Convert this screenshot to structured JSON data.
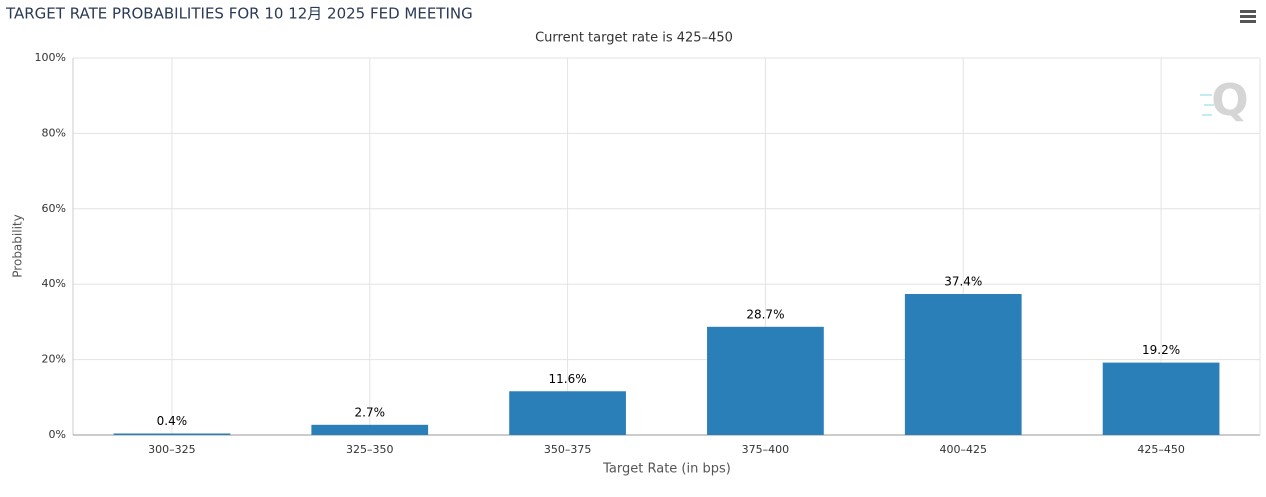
{
  "chart_data": {
    "type": "bar",
    "title": "TARGET RATE PROBABILITIES FOR 10 12月 2025 FED MEETING",
    "subtitle": "Current target rate is 425–450",
    "y_label": "Probability",
    "x_label": "Target Rate (in bps)",
    "categories": [
      "300–325",
      "325–350",
      "350–375",
      "375–400",
      "400–425",
      "425–450"
    ],
    "values": [
      0.4,
      2.7,
      11.6,
      28.7,
      37.4,
      19.2
    ],
    "value_labels": [
      "0.4%",
      "2.7%",
      "11.6%",
      "28.7%",
      "37.4%",
      "19.2%"
    ],
    "color": "#2a7fb8",
    "ylim": [
      0,
      100
    ],
    "yticks": [
      {
        "value": 0,
        "label": "0%"
      },
      {
        "value": 20,
        "label": "20%"
      },
      {
        "value": 40,
        "label": "40%"
      },
      {
        "value": 60,
        "label": "60%"
      },
      {
        "value": 80,
        "label": "80%"
      },
      {
        "value": 100,
        "label": "100%"
      }
    ],
    "grid": true
  }
}
